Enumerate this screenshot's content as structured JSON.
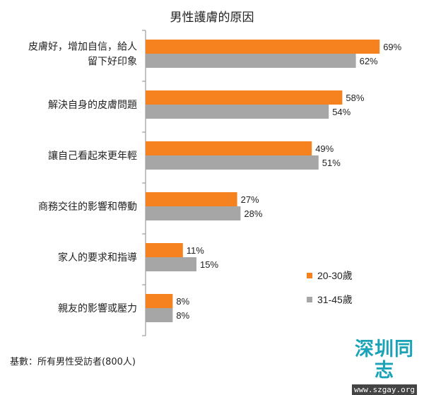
{
  "chart_data": {
    "type": "bar",
    "orientation": "horizontal",
    "title": "男性護膚的原因",
    "categories": [
      [
        "皮膚好，增加自信，給人",
        "留下好印象"
      ],
      [
        "解決自身的皮膚問題"
      ],
      [
        "讓自己看起來更年輕"
      ],
      [
        "商務交往的影響和帶動"
      ],
      [
        "家人的要求和指導"
      ],
      [
        "親友的影響或壓力"
      ]
    ],
    "series": [
      {
        "name": "20-30歲",
        "color": "#F5821F",
        "values": [
          69,
          58,
          49,
          27,
          11,
          8
        ]
      },
      {
        "name": "31-45歲",
        "color": "#A6A6A6",
        "values": [
          62,
          54,
          51,
          28,
          15,
          8
        ]
      }
    ],
    "value_suffix": "%",
    "xlim": [
      0,
      100
    ],
    "grid": false,
    "legend_position": "right"
  },
  "footnote": "基數：所有男性受訪者(800人)",
  "watermark": {
    "title": "深圳同志",
    "url": "www.szgay.org"
  }
}
